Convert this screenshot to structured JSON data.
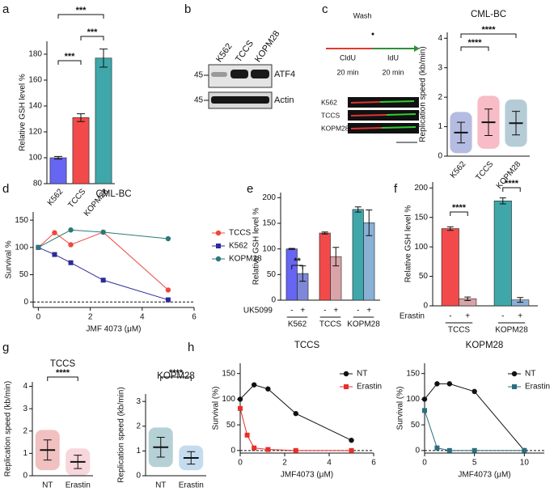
{
  "panel_labels": [
    "a",
    "b",
    "c",
    "d",
    "e",
    "f",
    "g",
    "h"
  ],
  "blot": {
    "lanes": [
      "K562",
      "TCCS",
      "KOPM28"
    ],
    "markers": [
      "45",
      "45"
    ],
    "proteins": [
      "ATF4",
      "Actin"
    ]
  },
  "schematic": {
    "wash": "Wash",
    "pulse1": "CldU",
    "pulse2": "IdU",
    "time1": "20 min",
    "time2": "20 min",
    "lanes": [
      "K562",
      "TCCS",
      "KOPM28"
    ]
  },
  "chart_data": [
    {
      "type": "bar",
      "ylabel": "Relative GSH level %",
      "categories": [
        "K562",
        "TCCS",
        "KOPM28"
      ],
      "values": [
        100,
        131,
        177
      ],
      "errors": [
        1,
        3,
        7
      ],
      "colors": [
        "#6666f2",
        "#f24a4a",
        "#3fa7a9"
      ],
      "ylim": [
        80,
        190
      ],
      "yticks": [
        80,
        100,
        120,
        140,
        160,
        180
      ],
      "annotations": [
        "***",
        "***",
        "***"
      ],
      "rotate_labels": true
    },
    {
      "type": "dot",
      "title": "CML-BC",
      "ylabel": "Replication speed (kb/min)",
      "categories": [
        "K562",
        "TCCS",
        "KOPM28"
      ],
      "values": [
        0.8,
        1.15,
        1.12
      ],
      "errors": [
        0.35,
        0.45,
        0.4
      ],
      "colors": [
        "#2a3ea8",
        "#e8405a",
        "#2a6e8c"
      ],
      "ylim": [
        0,
        4.2
      ],
      "yticks": [
        0,
        1,
        2,
        3,
        4
      ],
      "annotations": [
        "****",
        "****"
      ],
      "rotate_labels": true
    },
    {
      "type": "line",
      "title": "CML-BC",
      "xlabel": "JMF 4073 (μM)",
      "ylabel": "Survival %",
      "xlim": [
        -0.2,
        6
      ],
      "xticks": [
        0,
        2,
        4,
        6
      ],
      "ylim": [
        -10,
        165
      ],
      "yticks": [
        0,
        50,
        100,
        150
      ],
      "legend": "outside right",
      "series": [
        {
          "name": "TCCS",
          "color": "#f0473f",
          "marker": "circle",
          "x": [
            0,
            0.625,
            1.25,
            2.5,
            5
          ],
          "values": [
            100,
            127,
            105,
            128,
            22
          ]
        },
        {
          "name": "K562",
          "color": "#2b2b9a",
          "marker": "square",
          "x": [
            0,
            0.625,
            1.25,
            2.5,
            5
          ],
          "values": [
            100,
            87,
            72,
            40,
            4
          ]
        },
        {
          "name": "KOPM28",
          "color": "#2b7a78",
          "marker": "circle",
          "x": [
            0,
            1.25,
            2.5,
            5
          ],
          "values": [
            100,
            132,
            128,
            116
          ]
        }
      ]
    },
    {
      "type": "grouped_bar",
      "ylabel": "Relative GSH level %",
      "group_label": "UK5099",
      "categories": [
        "K562",
        "TCCS",
        "KOPM28"
      ],
      "series": [
        {
          "name": "-",
          "colors": [
            "#6666f2",
            "#f24a4a",
            "#3fa7a9"
          ],
          "values": [
            100,
            131,
            177
          ],
          "errors": [
            1,
            2,
            5
          ]
        },
        {
          "name": "+",
          "colors": [
            "#7e88d6",
            "#d9a3a8",
            "#8ab0d6"
          ],
          "values": [
            52,
            85,
            151
          ],
          "errors": [
            15,
            18,
            25
          ]
        }
      ],
      "ylim": [
        0,
        210
      ],
      "yticks": [
        0,
        50,
        100,
        150,
        200
      ],
      "annotations": [
        "**"
      ]
    },
    {
      "type": "grouped_bar",
      "ylabel": "Relative GSH level %",
      "group_label": "Erastin",
      "categories": [
        "TCCS",
        "KOPM28"
      ],
      "series": [
        {
          "name": "-",
          "colors": [
            "#f24a4a",
            "#3fa7a9"
          ],
          "values": [
            131,
            178
          ],
          "errors": [
            3,
            5
          ]
        },
        {
          "name": "+",
          "colors": [
            "#d9a3a8",
            "#8ab0d6"
          ],
          "values": [
            12,
            10
          ],
          "errors": [
            3,
            4
          ]
        }
      ],
      "ylim": [
        0,
        210
      ],
      "yticks": [
        0,
        50,
        100,
        150,
        200
      ],
      "annotations": [
        "****",
        "****"
      ]
    },
    {
      "type": "dot",
      "title": "TCCS",
      "ylabel": "Replication speed (kb/min)",
      "categories": [
        "NT",
        "Erastin"
      ],
      "values": [
        1.15,
        0.62
      ],
      "errors": [
        0.45,
        0.3
      ],
      "colors": [
        "#d84a4a",
        "#e88a9a"
      ],
      "ylim": [
        0,
        4.2
      ],
      "yticks": [
        0,
        1,
        2,
        3,
        4
      ],
      "annotations": [
        "****"
      ]
    },
    {
      "type": "dot",
      "title": "KOPM28",
      "ylabel": "Replication speed (kb/min)",
      "categories": [
        "NT",
        "Erastin"
      ],
      "values": [
        1.15,
        0.72
      ],
      "errors": [
        0.4,
        0.25
      ],
      "colors": [
        "#2a7a8a",
        "#5a9ad0"
      ],
      "ylim": [
        0,
        3.3
      ],
      "yticks": [
        0,
        1,
        2,
        3
      ],
      "annotations": [
        "****"
      ]
    },
    {
      "type": "line",
      "title": "TCCS",
      "xlabel": "JMF4073 (μM)",
      "ylabel": "Survival (%)",
      "xlim": [
        0,
        6
      ],
      "xticks": [
        0,
        2,
        4,
        6
      ],
      "ylim": [
        -5,
        170
      ],
      "yticks": [
        0,
        50,
        100,
        150
      ],
      "legend": "upper right",
      "series": [
        {
          "name": "NT",
          "color": "#111111",
          "marker": "circle",
          "x": [
            0,
            0.625,
            1.25,
            2.5,
            5
          ],
          "values": [
            100,
            128,
            120,
            72,
            20
          ]
        },
        {
          "name": "Erastin",
          "color": "#e8302a",
          "marker": "square",
          "x": [
            0,
            0.3125,
            0.625,
            1.25,
            2.5,
            5
          ],
          "values": [
            82,
            30,
            5,
            2,
            0,
            0
          ]
        }
      ]
    },
    {
      "type": "line",
      "title": "KOPM28",
      "xlabel": "JMF4073 (μM)",
      "ylabel": "Survival (%)",
      "xlim": [
        0,
        12
      ],
      "xticks": [
        0,
        5,
        10
      ],
      "ylim": [
        -5,
        170
      ],
      "yticks": [
        0,
        50,
        100,
        150
      ],
      "legend": "upper right",
      "series": [
        {
          "name": "NT",
          "color": "#111111",
          "marker": "circle",
          "x": [
            0,
            1.25,
            2.5,
            5,
            10
          ],
          "values": [
            100,
            130,
            130,
            115,
            0
          ]
        },
        {
          "name": "Erastin",
          "color": "#2d6e7e",
          "marker": "square",
          "x": [
            0,
            1.25,
            2.5,
            5,
            10
          ],
          "values": [
            78,
            5,
            0,
            0,
            0
          ]
        }
      ]
    }
  ]
}
